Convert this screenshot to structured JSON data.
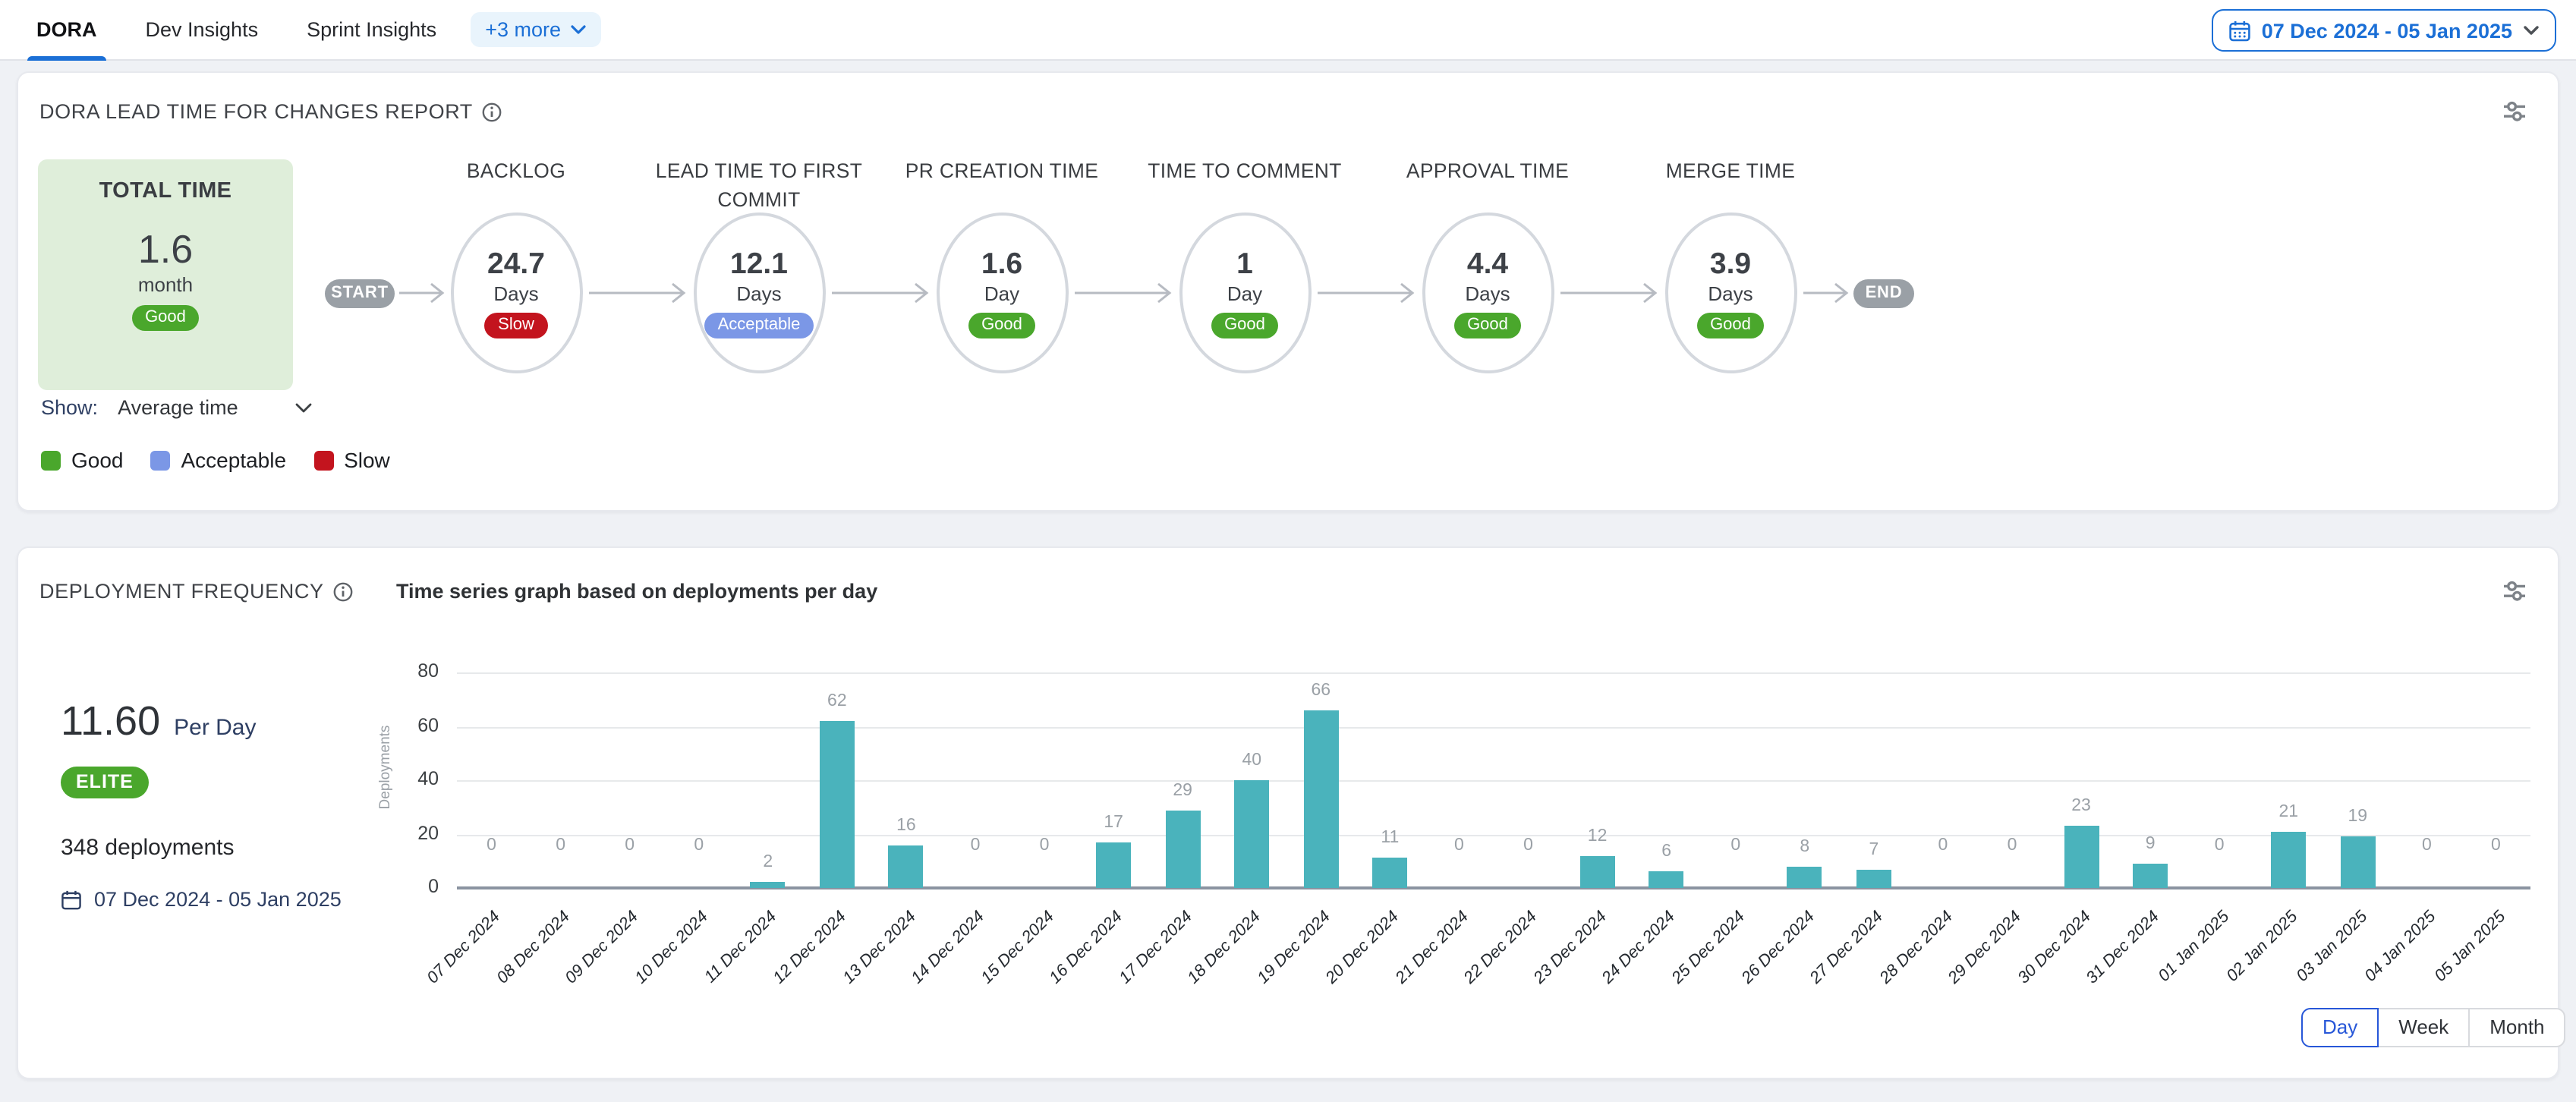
{
  "accent_colors": {
    "blue": "#1b6fd6",
    "teal": "#4ab3bc",
    "pill_gray": "#9aa0a6"
  },
  "status_colors": {
    "Good": "#4aa72c",
    "Acceptable": "#7b97e6",
    "Slow": "#c3141e"
  },
  "icons": {
    "calendar-icon": "calendar grid glyph",
    "chevron-down-icon": "⌄",
    "info-icon": "ⓘ",
    "filter-sliders-icon": "two slider lines with knobs"
  },
  "tab_bar": {
    "tabs": [
      {
        "label": "DORA",
        "active": true
      },
      {
        "label": "Dev Insights",
        "active": false
      },
      {
        "label": "Sprint Insights",
        "active": false
      }
    ],
    "more_label": "+3 more",
    "date_range": "07 Dec 2024 - 05 Jan 2025"
  },
  "lead_time_card": {
    "title": "DORA LEAD TIME FOR CHANGES REPORT",
    "total": {
      "label": "TOTAL TIME",
      "value": "1.6",
      "unit": "month",
      "status": "Good"
    },
    "flow": {
      "start": "START",
      "end": "END",
      "stages": [
        {
          "name": "BACKLOG",
          "value": "24.7",
          "unit": "Days",
          "status": "Slow"
        },
        {
          "name": "LEAD TIME TO FIRST COMMIT",
          "value": "12.1",
          "unit": "Days",
          "status": "Acceptable"
        },
        {
          "name": "PR CREATION TIME",
          "value": "1.6",
          "unit": "Day",
          "status": "Good"
        },
        {
          "name": "TIME TO COMMENT",
          "value": "1",
          "unit": "Day",
          "status": "Good"
        },
        {
          "name": "APPROVAL TIME",
          "value": "4.4",
          "unit": "Days",
          "status": "Good"
        },
        {
          "name": "MERGE TIME",
          "value": "3.9",
          "unit": "Days",
          "status": "Good"
        }
      ]
    },
    "show": {
      "label": "Show:",
      "value": "Average time"
    },
    "legend": [
      {
        "label": "Good",
        "color": "#4aa72c"
      },
      {
        "label": "Acceptable",
        "color": "#7b97e6"
      },
      {
        "label": "Slow",
        "color": "#c3141e"
      }
    ]
  },
  "deployment_card": {
    "title": "DEPLOYMENT FREQUENCY",
    "chart_title": "Time series graph based on deployments per day",
    "rate": {
      "value": "11.60",
      "unit": "Per Day"
    },
    "tier": "ELITE",
    "deployments_total": "348 deployments",
    "date_range": "07 Dec 2024 - 05 Jan 2025",
    "granularity": [
      {
        "label": "Day",
        "active": true
      },
      {
        "label": "Week",
        "active": false
      },
      {
        "label": "Month",
        "active": false
      }
    ]
  },
  "chart_data": {
    "type": "bar",
    "title": "Time series graph based on deployments per day",
    "xlabel": "",
    "ylabel": "Deployments",
    "ylim": [
      0,
      80
    ],
    "yticks": [
      0,
      20,
      40,
      60,
      80
    ],
    "grid": true,
    "bar_color": "#4ab3bc",
    "categories": [
      "07 Dec 2024",
      "08 Dec 2024",
      "09 Dec 2024",
      "10 Dec 2024",
      "11 Dec 2024",
      "12 Dec 2024",
      "13 Dec 2024",
      "14 Dec 2024",
      "15 Dec 2024",
      "16 Dec 2024",
      "17 Dec 2024",
      "18 Dec 2024",
      "19 Dec 2024",
      "20 Dec 2024",
      "21 Dec 2024",
      "22 Dec 2024",
      "23 Dec 2024",
      "24 Dec 2024",
      "25 Dec 2024",
      "26 Dec 2024",
      "27 Dec 2024",
      "28 Dec 2024",
      "29 Dec 2024",
      "30 Dec 2024",
      "31 Dec 2024",
      "01 Jan 2025",
      "02 Jan 2025",
      "03 Jan 2025",
      "04 Jan 2025",
      "05 Jan 2025"
    ],
    "values": [
      0,
      0,
      0,
      0,
      2,
      62,
      16,
      0,
      0,
      17,
      29,
      40,
      66,
      11,
      0,
      0,
      12,
      6,
      0,
      8,
      7,
      0,
      0,
      23,
      9,
      0,
      21,
      19,
      0,
      0
    ]
  }
}
